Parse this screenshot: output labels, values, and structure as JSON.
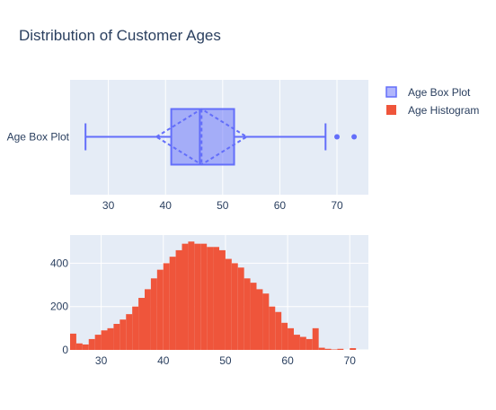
{
  "colors": {
    "box": "#636efa",
    "histogram": "#ef553b",
    "plot_bg": "#e5ecf6",
    "grid": "#ffffff",
    "text": "#2a3f5f"
  },
  "chart_data": [
    {
      "type": "box",
      "title": "Distribution of Customer Ages",
      "orientation": "horizontal",
      "category": "Age Box Plot",
      "name": "Age Box Plot",
      "stats": {
        "lower_fence": 26,
        "q1": 41,
        "median": 46,
        "q3": 52,
        "upper_fence": 68,
        "mean": 46.3,
        "sd_low": 38.4,
        "sd_high": 54.2
      },
      "outliers": [
        70,
        73
      ],
      "xlim": [
        23.3,
        75.5
      ],
      "xticks": [
        "30",
        "40",
        "50",
        "60",
        "70"
      ],
      "xtick_values": [
        30,
        40,
        50,
        60,
        70
      ],
      "legend_position": "top-right"
    },
    {
      "type": "bar",
      "name": "Age Histogram",
      "bin_width": 1,
      "bin_start": 25,
      "values": [
        75,
        30,
        25,
        50,
        70,
        90,
        100,
        120,
        140,
        165,
        200,
        240,
        280,
        330,
        370,
        400,
        430,
        460,
        490,
        500,
        490,
        490,
        475,
        475,
        460,
        420,
        400,
        380,
        330,
        310,
        280,
        260,
        200,
        175,
        125,
        100,
        70,
        60,
        50,
        100,
        10,
        5,
        2,
        5,
        0,
        8
      ],
      "xlim": [
        25,
        73
      ],
      "ylim": [
        0,
        530
      ],
      "xticks": [
        "30",
        "40",
        "50",
        "60",
        "70"
      ],
      "xtick_values": [
        30,
        40,
        50,
        60,
        70
      ],
      "yticks": [
        "0",
        "200",
        "400"
      ],
      "ytick_values": [
        0,
        200,
        400
      ]
    }
  ]
}
